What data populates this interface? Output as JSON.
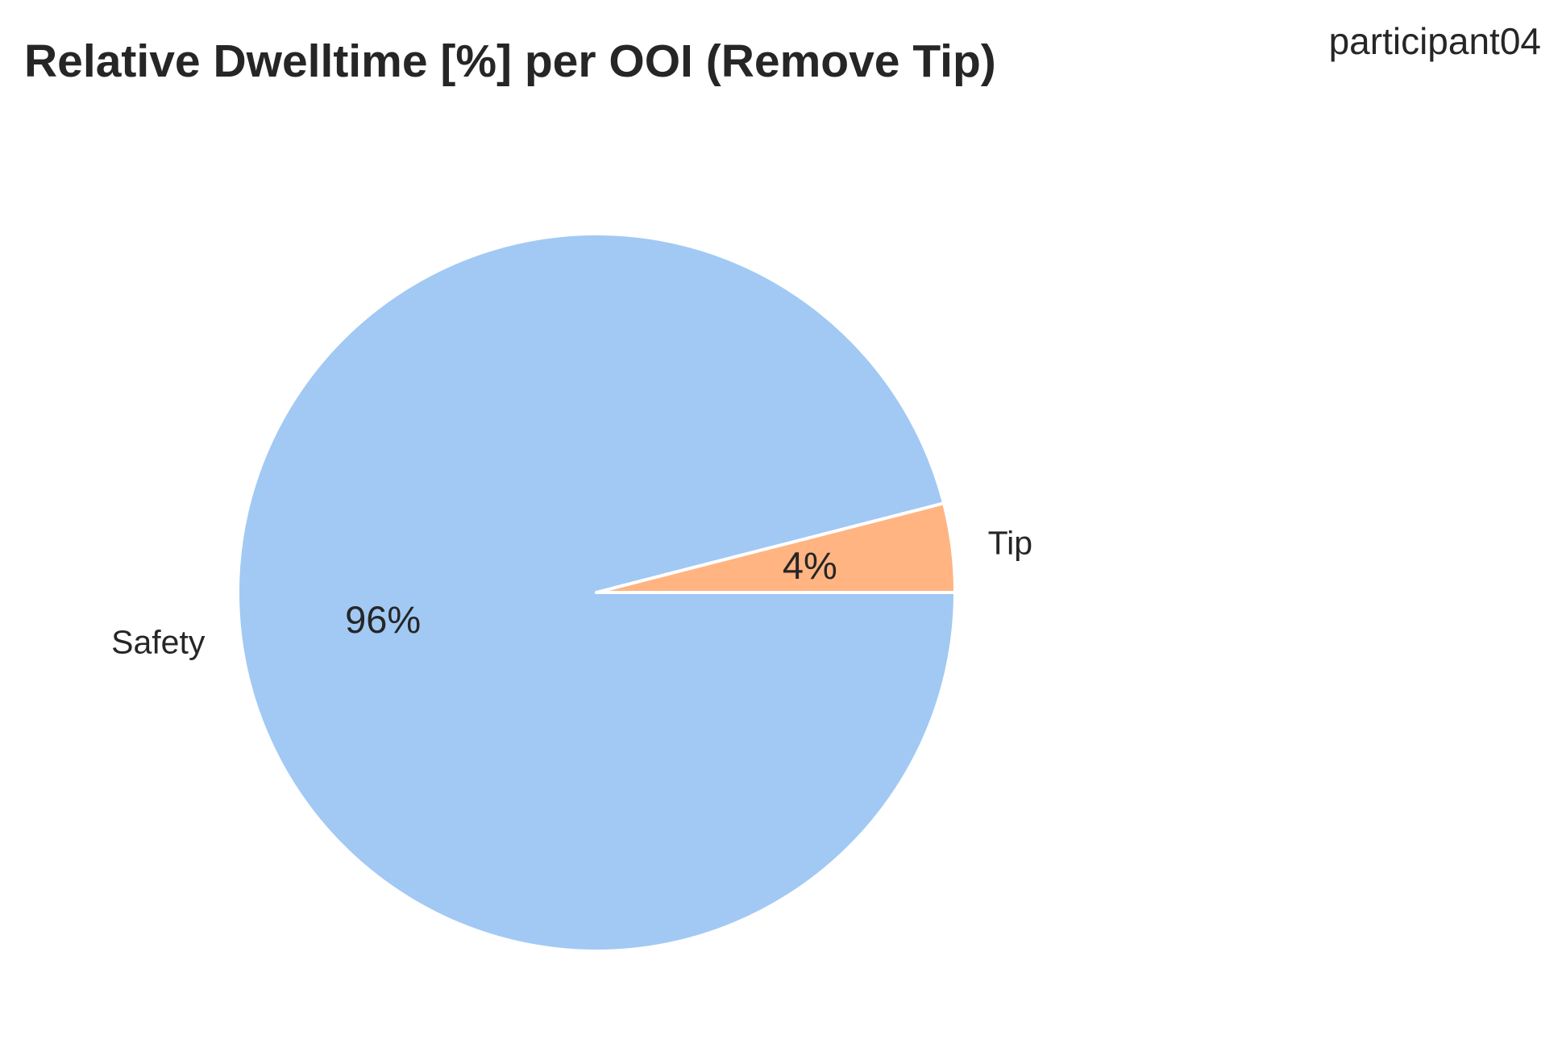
{
  "chart_data": {
    "type": "pie",
    "title": "Relative Dwelltime [%] per OOI (Remove Tip)",
    "subtitle": "participant04",
    "labels": [
      "Safety",
      "Tip"
    ],
    "values": [
      96,
      4
    ],
    "value_labels": [
      "96%",
      "4%"
    ],
    "colors": [
      "#a1c9f4",
      "#ffb482"
    ],
    "start_angle_deg": 0,
    "direction": "clockwise",
    "edge_color": "#ffffff"
  }
}
